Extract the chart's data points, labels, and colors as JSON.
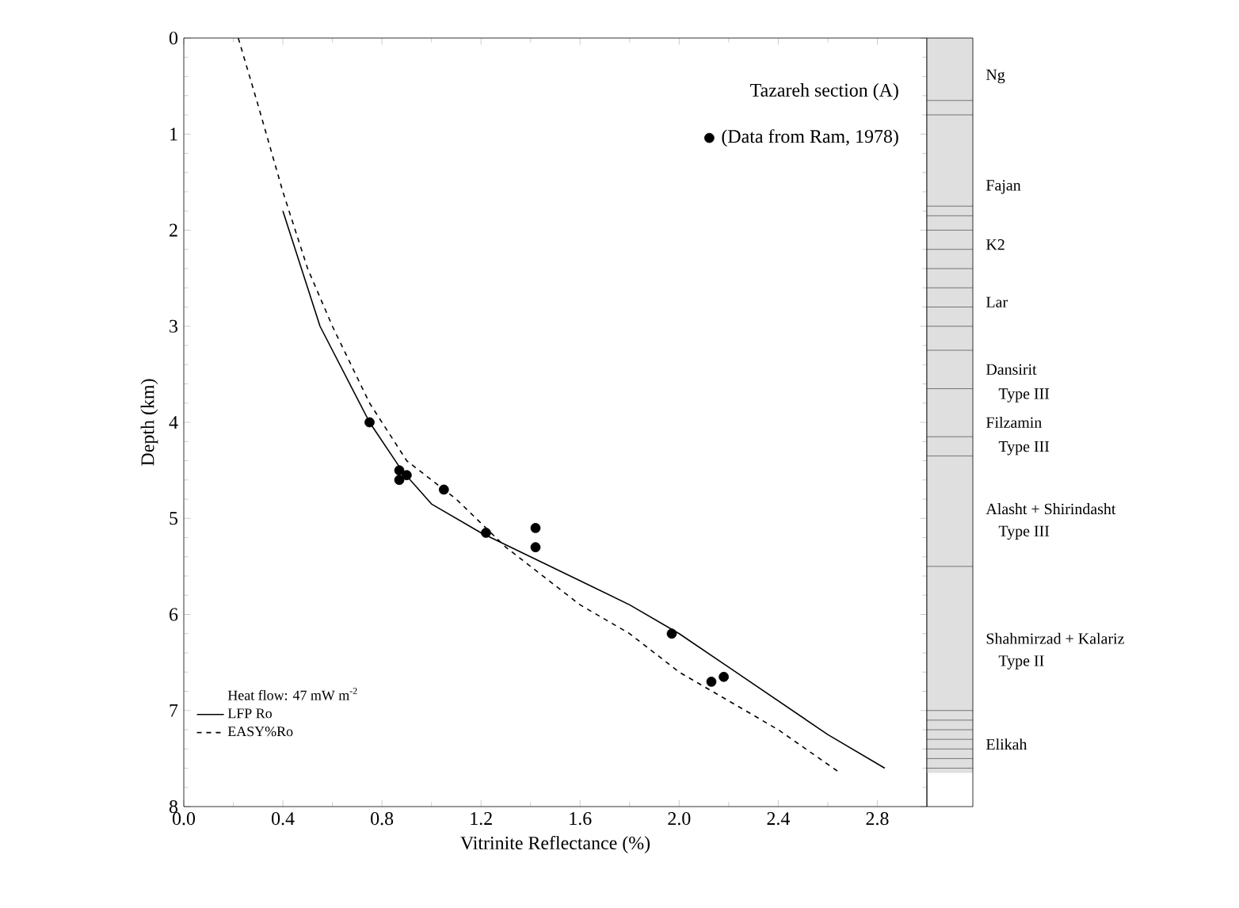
{
  "chart_data": {
    "type": "line",
    "title": "Tazareh section (A)",
    "xlabel": "Vitrinite Reflectance (%)",
    "ylabel": "Depth (km)",
    "legend_title": "Heat flow: 47 mW m$^{-2}$",
    "xlim": [
      0,
      3.0
    ],
    "ylim": [
      8,
      0
    ],
    "xticks": [
      {
        "value": 0,
        "label": "0.0"
      },
      0.4,
      0.8,
      1.2,
      1.6,
      {
        "value": 2,
        "label": "2.0"
      },
      2.4,
      2.8
    ],
    "yticks": [
      0,
      1,
      2,
      3,
      4,
      5,
      6,
      7,
      8
    ],
    "grid": false,
    "legend": "bottom left",
    "series": [
      {
        "name": "LFP Ro",
        "line_style": "solid",
        "color": "#000000",
        "x": [
          0.4,
          0.5,
          0.55,
          0.65,
          0.75,
          0.88,
          1.0,
          1.2,
          1.4,
          1.6,
          1.8,
          2.0,
          2.2,
          2.4,
          2.6,
          2.83
        ],
        "values": [
          1.8,
          2.6,
          3.0,
          3.5,
          4.0,
          4.5,
          4.85,
          5.15,
          5.4,
          5.65,
          5.9,
          6.2,
          6.55,
          6.9,
          7.25,
          7.6
        ]
      },
      {
        "name": "EASY%Ro",
        "line_style": "dashed",
        "color": "#000000",
        "x": [
          0.22,
          0.3,
          0.4,
          0.5,
          0.6,
          0.75,
          0.9,
          1.1,
          1.3,
          1.4,
          1.6,
          1.8,
          2.0,
          2.2,
          2.4,
          2.65
        ],
        "values": [
          0,
          0.7,
          1.6,
          2.4,
          3.0,
          3.8,
          4.4,
          4.8,
          5.3,
          5.5,
          5.9,
          6.2,
          6.6,
          6.9,
          7.2,
          7.65
        ]
      },
      {
        "name": "(Data from Ram, 1978)",
        "type": "scatter",
        "marker": "circle",
        "color": "#000000",
        "x": [
          0.75,
          0.87,
          0.9,
          0.87,
          1.05,
          1.22,
          1.42,
          1.42,
          1.97,
          2.13,
          2.18
        ],
        "values": [
          4.0,
          4.5,
          4.55,
          4.6,
          4.7,
          5.15,
          5.1,
          5.3,
          6.2,
          6.7,
          6.65
        ]
      }
    ],
    "annotations": [
      "Ng",
      "Fajan",
      "K2",
      "Lar",
      "Dansirit",
      "Type III",
      "Filzamin",
      "Type III",
      "Alasht + Shirindasht",
      "Type III",
      "Shahmirzad + Kalariz",
      "Type II",
      "Elikah"
    ]
  }
}
